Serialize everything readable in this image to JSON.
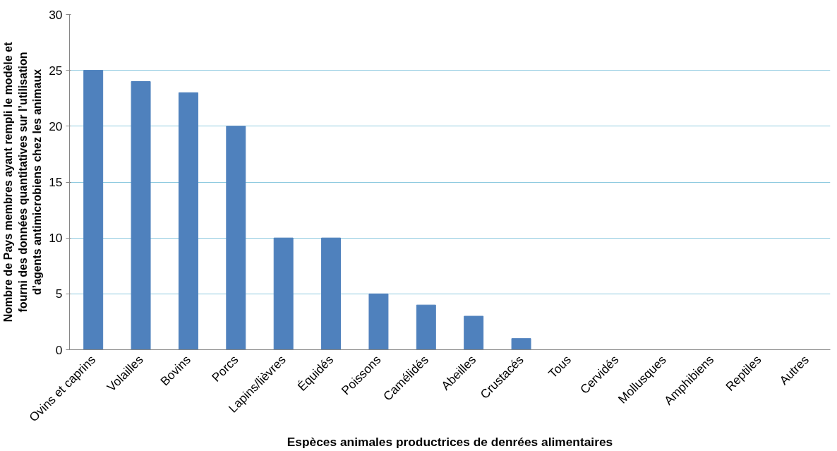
{
  "chart_data": {
    "type": "bar",
    "xlabel": "Espèces animales productrices de denrées alimentaires",
    "ylabel": "Nombre de Pays membres ayant rempli le modèle et\nfourni des données quantitatives sur l’utilisation\nd’agents antimicrobiens chez les animaux",
    "categories": [
      "Ovins et caprins",
      "Volailles",
      "Bovins",
      "Porcs",
      "Lapins/lièvres",
      "Équidés",
      "Poissons",
      "Camélidés",
      "Abeilles",
      "Crustacés",
      "Tous",
      "Cervidés",
      "Mollusques",
      "Amphibiens",
      "Reptiles",
      "Autres"
    ],
    "values": [
      25,
      24,
      23,
      20,
      10,
      10,
      5,
      4,
      3,
      1,
      0,
      0,
      0,
      0,
      0,
      0
    ],
    "color": "#4f81bd",
    "ylim": [
      0,
      30
    ],
    "yticks": [
      0,
      5,
      10,
      15,
      20,
      25,
      30
    ],
    "grid": "y"
  }
}
